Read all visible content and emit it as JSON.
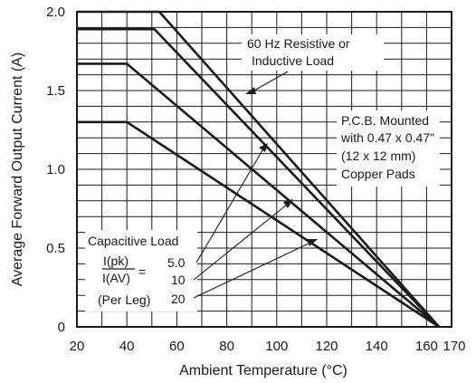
{
  "chart_data": {
    "type": "line",
    "xlabel": "Ambient Temperature (°C)",
    "ylabel": "Average Forward Output Current (A)",
    "xlim": [
      20,
      170
    ],
    "ylim": [
      0,
      2.0
    ],
    "x_ticks": [
      "20",
      "40",
      "60",
      "80",
      "100",
      "120",
      "140",
      "160",
      "170"
    ],
    "y_ticks": [
      "0",
      "0.5",
      "1.0",
      "1.5",
      "2.0"
    ],
    "grid": true,
    "series": [
      {
        "name": "60 Hz Resistive or Inductive Load",
        "x": [
          20,
          53,
          165
        ],
        "y": [
          2.0,
          2.0,
          0
        ]
      },
      {
        "name": "5.0",
        "x": [
          20,
          51,
          165
        ],
        "y": [
          1.89,
          1.89,
          0
        ]
      },
      {
        "name": "10",
        "x": [
          20,
          40,
          165
        ],
        "y": [
          1.67,
          1.67,
          0
        ]
      },
      {
        "name": "20",
        "x": [
          20,
          40,
          165
        ],
        "y": [
          1.3,
          1.3,
          0
        ]
      }
    ],
    "annotations": {
      "resistive_line1": "60 Hz Resistive or",
      "resistive_line2": "Inductive Load",
      "pcb_line1": "P.C.B. Mounted",
      "pcb_line2": "with 0.47 x 0.47\"",
      "pcb_line3": "(12 x 12 mm)",
      "pcb_line4": "Copper Pads",
      "cap_title": "Capacitive Load",
      "ratio_num": "I(pk)",
      "ratio_den": "I(AV)",
      "equals": "=",
      "per_leg": "(Per Leg)",
      "val_5": "5.0",
      "val_10": "10",
      "val_20": "20"
    }
  }
}
